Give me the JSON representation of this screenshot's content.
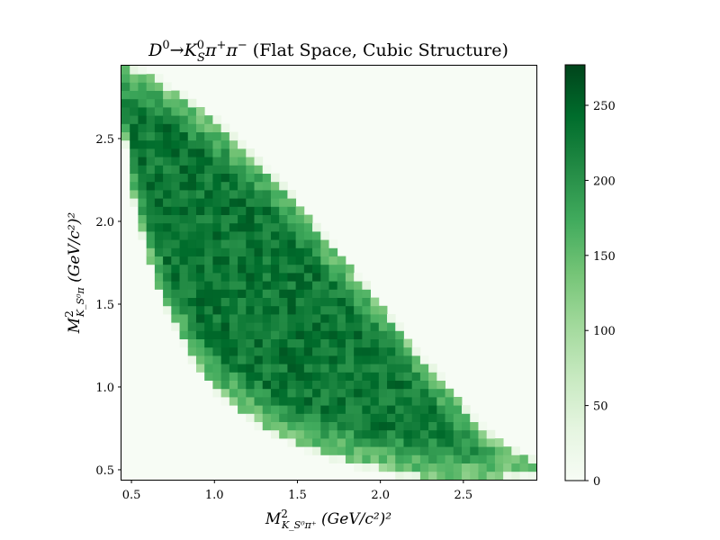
{
  "chart_data": {
    "type": "heatmap",
    "title": "D⁰→K_S⁰π⁺π⁻ (Flat Space, Cubic Structure)",
    "title_parts": {
      "d0": "D",
      "d0_sup": "0",
      "arrow": "→",
      "ks": "K",
      "ks_sub": "S",
      "ks_sup": "0",
      "pip": "π",
      "pip_sup": "+",
      "pim": "π",
      "pim_sup": "−",
      "suffix": " (Flat Space, Cubic Structure)"
    },
    "xlabel": "M²_{K_S⁰π⁺} (GeV/c²)²",
    "ylabel": "M²_{K_S⁰π} (GeV/c²)²",
    "xlabel_parts": {
      "m": "M",
      "m_sup": "2",
      "sub": "K_S⁰π⁺",
      "unit": " (GeV/c²)²"
    },
    "ylabel_parts": {
      "m": "M",
      "m_sup": "2",
      "sub": "K_S⁰π",
      "unit": " (GeV/c²)²"
    },
    "xlim": [
      0.44,
      2.94
    ],
    "ylim": [
      0.44,
      2.94
    ],
    "xticks": [
      0.5,
      1.0,
      1.5,
      2.0,
      2.5
    ],
    "xtick_labels": [
      "0.5",
      "1.0",
      "1.5",
      "2.0",
      "2.5"
    ],
    "yticks": [
      0.5,
      1.0,
      1.5,
      2.0,
      2.5
    ],
    "ytick_labels": [
      "0.5",
      "1.0",
      "1.5",
      "2.0",
      "2.5"
    ],
    "bins": 50,
    "boundary": {
      "note": "Dalitz region edge read from the plot, in (GeV/c²)²",
      "upper": [
        [
          0.44,
          2.94
        ],
        [
          0.6,
          2.88
        ],
        [
          0.8,
          2.76
        ],
        [
          1.0,
          2.6
        ],
        [
          1.2,
          2.42
        ],
        [
          1.4,
          2.22
        ],
        [
          1.6,
          1.98
        ],
        [
          1.8,
          1.74
        ],
        [
          2.0,
          1.49
        ],
        [
          2.2,
          1.23
        ],
        [
          2.4,
          1.0
        ],
        [
          2.6,
          0.76
        ],
        [
          2.8,
          0.6
        ],
        [
          2.94,
          0.53
        ]
      ],
      "lower": [
        [
          0.44,
          2.68
        ],
        [
          0.5,
          2.2
        ],
        [
          0.6,
          1.8
        ],
        [
          0.7,
          1.5
        ],
        [
          0.8,
          1.3
        ],
        [
          0.9,
          1.13
        ],
        [
          1.0,
          1.0
        ],
        [
          1.2,
          0.83
        ],
        [
          1.4,
          0.71
        ],
        [
          1.6,
          0.62
        ],
        [
          1.8,
          0.56
        ],
        [
          2.0,
          0.51
        ],
        [
          2.2,
          0.47
        ],
        [
          2.4,
          0.45
        ],
        [
          2.6,
          0.45
        ],
        [
          2.8,
          0.47
        ],
        [
          2.94,
          0.49
        ]
      ]
    },
    "density": {
      "core": 230,
      "edge": 130,
      "fluctuation": 30
    },
    "colorbar": {
      "label": "",
      "min": 0,
      "max": 277,
      "ticks": [
        0,
        50,
        100,
        150,
        200,
        250
      ],
      "tick_labels": [
        "0",
        "50",
        "100",
        "150",
        "200",
        "250"
      ],
      "colormap": "Greens",
      "colors": [
        "#f7fcf5",
        "#e5f5e0",
        "#c7e9c0",
        "#a1d99b",
        "#74c476",
        "#41ab5d",
        "#238b45",
        "#006d2c",
        "#00441b"
      ]
    }
  }
}
